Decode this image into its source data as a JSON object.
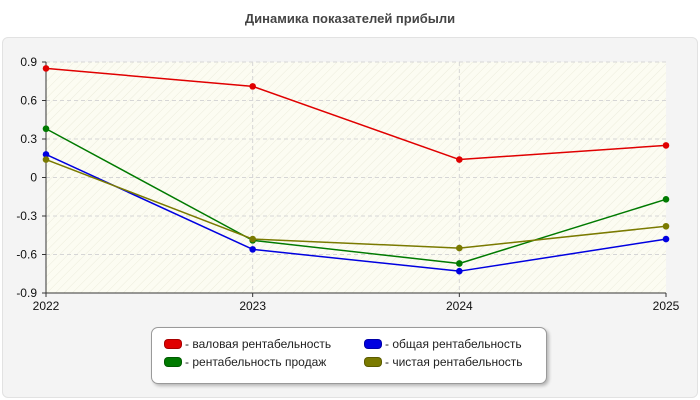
{
  "title": "Динамика показателей прибыли",
  "chart_data": {
    "type": "line",
    "title": "Динамика показателей прибыли",
    "xlabel": "",
    "ylabel": "",
    "x": [
      "2022",
      "2023",
      "2024",
      "2025"
    ],
    "ylim": [
      -0.9,
      0.9
    ],
    "yticks": [
      "0.9",
      "0.6",
      "0.3",
      "0",
      "-0.3",
      "-0.6",
      "-0.9"
    ],
    "grid": true,
    "legend_position": "bottom",
    "series": [
      {
        "name": "валовая рентабельность",
        "color": "#e00000",
        "values": [
          0.85,
          0.71,
          0.14,
          0.25
        ]
      },
      {
        "name": "общая рентабельность",
        "color": "#0000e0",
        "values": [
          0.18,
          -0.56,
          -0.73,
          -0.48
        ]
      },
      {
        "name": "рентабельность продаж",
        "color": "#007a00",
        "values": [
          0.38,
          -0.49,
          -0.67,
          -0.17
        ]
      },
      {
        "name": "чистая рентабельность",
        "color": "#7a7a00",
        "values": [
          0.14,
          -0.48,
          -0.55,
          -0.38
        ]
      }
    ]
  },
  "legend": {
    "items": [
      {
        "label": "валовая рентабельность",
        "color": "#e00000"
      },
      {
        "label": "общая рентабельность",
        "color": "#0000e0"
      },
      {
        "label": "рентабельность продаж",
        "color": "#007a00"
      },
      {
        "label": "чистая рентабельность",
        "color": "#7a7a00"
      }
    ]
  }
}
